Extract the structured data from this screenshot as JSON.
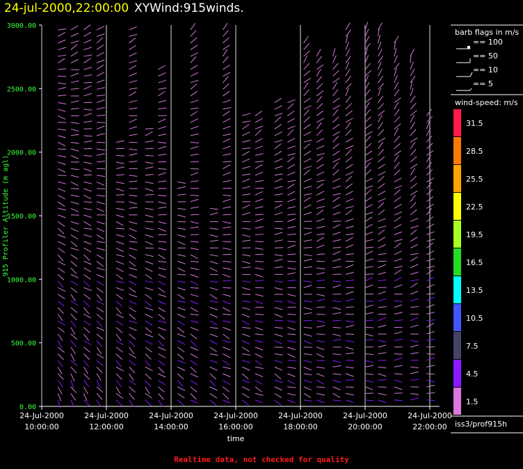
{
  "header": {
    "date": "24-jul-2000,22:00:00",
    "name": "XYWind:915winds."
  },
  "footer": {
    "warning": "Realtime data, not checked for quality"
  },
  "legend": {
    "barb_title": "barb flags in m/s",
    "barbs": [
      {
        "value": 100,
        "label": "== 100"
      },
      {
        "value": 50,
        "label": "== 50"
      },
      {
        "value": 10,
        "label": "== 10"
      },
      {
        "value": 5,
        "label": "== 5"
      }
    ],
    "speed_title": "wind-speed: m/s",
    "source": "iss3/prof915h"
  },
  "colorbar": [
    {
      "label": "31.5",
      "color": "#ff1a4a"
    },
    {
      "label": "28.5",
      "color": "#ff7a00"
    },
    {
      "label": "25.5",
      "color": "#ffa500"
    },
    {
      "label": "22.5",
      "color": "#ffff00"
    },
    {
      "label": "19.5",
      "color": "#aaff22"
    },
    {
      "label": "16.5",
      "color": "#22dd22"
    },
    {
      "label": "13.5",
      "color": "#00ffff"
    },
    {
      "label": "10.5",
      "color": "#4455ff"
    },
    {
      "label": "7.5",
      "color": "#444466"
    },
    {
      "label": "4.5",
      "color": "#8a1aff"
    },
    {
      "label": "1.5",
      "color": "#dd77dd"
    }
  ],
  "chart_data": {
    "type": "scatter",
    "title": "XYWind:915winds.",
    "xlabel": "time",
    "ylabel": "915 Profiler Altitude (m agl)",
    "ylim": [
      0,
      3000
    ],
    "yticks": [
      "0.00",
      "500.00",
      "1000.00",
      "1500.00",
      "2000.00",
      "2500.00",
      "3000.00"
    ],
    "xticks": [
      {
        "date": "24-Jul-2000",
        "time": "10:00:00"
      },
      {
        "date": "24-Jul-2000",
        "time": "12:00:00"
      },
      {
        "date": "24-Jul-2000",
        "time": "14:00:00"
      },
      {
        "date": "24-Jul-2000",
        "time": "16:00:00"
      },
      {
        "date": "24-Jul-2000",
        "time": "18:00:00"
      },
      {
        "date": "24-Jul-2000",
        "time": "20:00:00"
      },
      {
        "date": "24-Jul-2000",
        "time": "22:00:00"
      }
    ],
    "time_range_hours": [
      10.0,
      22.0
    ],
    "grid": "vertical",
    "barb_columns": [
      {
        "t": 10.5,
        "top": 3000,
        "dir": [
          -60,
          -50,
          -40,
          -40,
          -30,
          -20,
          -15,
          -10,
          0,
          20
        ],
        "spd": 4.0
      },
      {
        "t": 10.9,
        "top": 3000,
        "dir": [
          -60,
          -50,
          -45,
          -35,
          -25,
          -15,
          -10,
          0,
          10,
          30
        ],
        "spd": 4.5
      },
      {
        "t": 11.3,
        "top": 3000,
        "dir": [
          -55,
          -45,
          -40,
          -30,
          -20,
          -15,
          -5,
          5,
          15,
          25
        ],
        "spd": 4.5
      },
      {
        "t": 11.7,
        "top": 3000,
        "dir": [
          -50,
          -45,
          -35,
          -30,
          -20,
          -10,
          0,
          10,
          20,
          30
        ],
        "spd": 4.0
      },
      {
        "t": 12.3,
        "top": 2100,
        "dir": [
          -50,
          -40,
          -35,
          -25,
          -15,
          -10,
          0,
          10,
          15,
          25
        ],
        "spd": 4.0
      },
      {
        "t": 12.7,
        "top": 3000,
        "dir": [
          -45,
          -40,
          -30,
          -25,
          -15,
          -5,
          5,
          10,
          20,
          30
        ],
        "spd": 4.5
      },
      {
        "t": 13.2,
        "top": 2200,
        "dir": [
          -45,
          -35,
          -30,
          -20,
          -15,
          -5,
          5,
          15,
          20,
          30
        ],
        "spd": 4.5
      },
      {
        "t": 13.6,
        "top": 2700,
        "dir": [
          -40,
          -35,
          -25,
          -20,
          -10,
          0,
          5,
          15,
          25,
          35
        ],
        "spd": 4.0
      },
      {
        "t": 14.2,
        "top": 1800,
        "dir": [
          -40,
          -30,
          -25,
          -15,
          -10,
          0,
          10,
          15,
          25,
          35
        ],
        "spd": 4.0
      },
      {
        "t": 14.6,
        "top": 3000,
        "dir": [
          -35,
          -30,
          -20,
          -15,
          -5,
          5,
          10,
          20,
          30,
          40
        ],
        "spd": 4.5
      },
      {
        "t": 15.2,
        "top": 1600,
        "dir": [
          -35,
          -25,
          -20,
          -10,
          -5,
          5,
          15,
          20,
          30,
          40
        ],
        "spd": 4.5
      },
      {
        "t": 15.6,
        "top": 3000,
        "dir": [
          -30,
          -25,
          -15,
          -10,
          0,
          10,
          15,
          25,
          35,
          45
        ],
        "spd": 4.0
      },
      {
        "t": 16.2,
        "top": 2300,
        "dir": [
          -30,
          -20,
          -15,
          -5,
          0,
          10,
          20,
          25,
          35,
          45
        ],
        "spd": 4.0
      },
      {
        "t": 16.6,
        "top": 2300,
        "dir": [
          -25,
          -20,
          -10,
          -5,
          5,
          15,
          20,
          30,
          40,
          50
        ],
        "spd": 4.5
      },
      {
        "t": 17.2,
        "top": 2400,
        "dir": [
          -25,
          -15,
          -10,
          0,
          5,
          15,
          25,
          30,
          40,
          50
        ],
        "spd": 4.5
      },
      {
        "t": 17.6,
        "top": 2400,
        "dir": [
          -20,
          -15,
          -5,
          0,
          10,
          20,
          25,
          35,
          45,
          55
        ],
        "spd": 4.0
      },
      {
        "t": 18.1,
        "top": 2900,
        "dir": [
          -20,
          -10,
          -5,
          5,
          10,
          20,
          30,
          35,
          45,
          55
        ],
        "spd": 4.0
      },
      {
        "t": 18.5,
        "top": 2800,
        "dir": [
          -15,
          -10,
          0,
          5,
          15,
          25,
          30,
          40,
          50,
          60
        ],
        "spd": 4.5
      },
      {
        "t": 19.0,
        "top": 2800,
        "dir": [
          -15,
          -5,
          0,
          10,
          15,
          25,
          35,
          40,
          50,
          60
        ],
        "spd": 4.5
      },
      {
        "t": 19.4,
        "top": 3000,
        "dir": [
          -10,
          -5,
          5,
          10,
          20,
          30,
          35,
          45,
          55,
          65
        ],
        "spd": 4.0
      },
      {
        "t": 20.0,
        "top": 3000,
        "dir": [
          -10,
          0,
          5,
          15,
          20,
          30,
          40,
          45,
          55,
          65
        ],
        "spd": 4.0
      },
      {
        "t": 20.4,
        "top": 3000,
        "dir": [
          -5,
          0,
          10,
          15,
          25,
          35,
          40,
          50,
          60,
          70
        ],
        "spd": 4.5
      },
      {
        "t": 20.9,
        "top": 2900,
        "dir": [
          -5,
          5,
          10,
          20,
          25,
          35,
          45,
          50,
          60,
          70
        ],
        "spd": 4.5
      },
      {
        "t": 21.4,
        "top": 2800,
        "dir": [
          0,
          5,
          15,
          20,
          30,
          40,
          45,
          55,
          65,
          75
        ],
        "spd": 4.0
      },
      {
        "t": 21.9,
        "top": 2300,
        "dir": [
          0,
          10,
          15,
          25,
          30,
          40,
          50,
          55,
          65,
          75
        ],
        "spd": 4.0
      }
    ]
  }
}
